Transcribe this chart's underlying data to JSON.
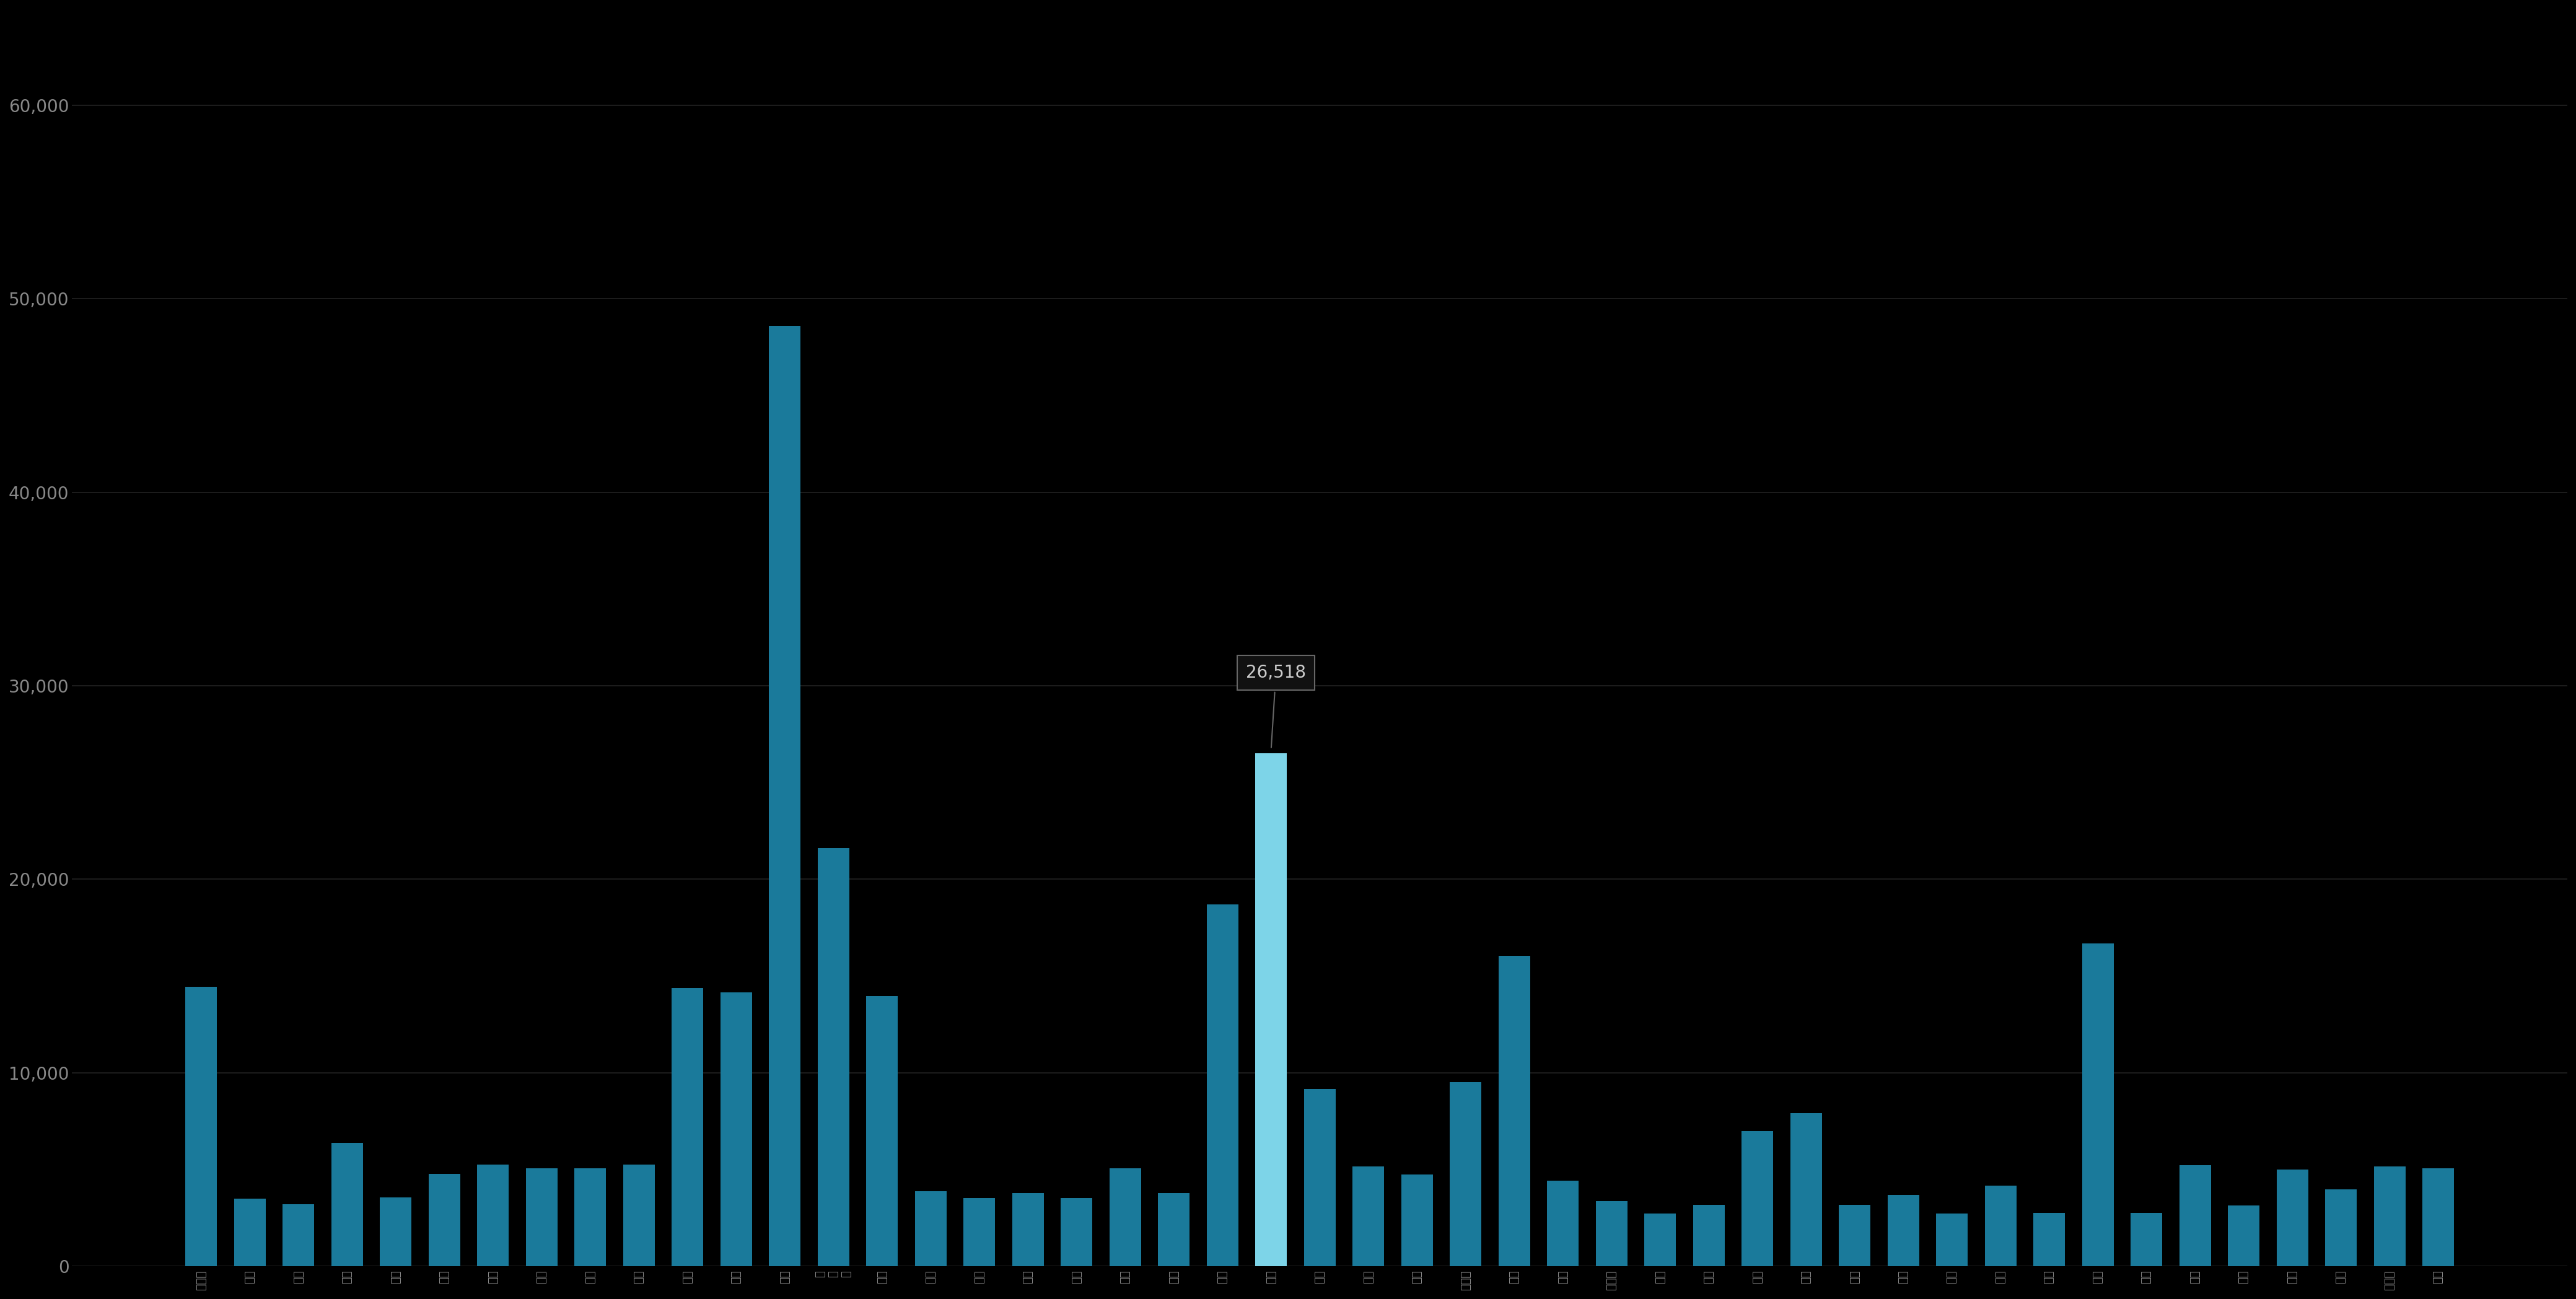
{
  "background_color": "#000000",
  "bar_color_default": "#1a7a9b",
  "bar_color_highlight": "#7dd4e8",
  "highlight_index": 22,
  "annotation_value": "26,518",
  "categories": [
    "北海道",
    "青森",
    "岐手",
    "宮城",
    "秋田",
    "山形",
    "福島",
    "茨城",
    "栃木",
    "群馬",
    "埼玉",
    "千葉",
    "東京",
    "神奈川",
    "新潟",
    "富山",
    "石川",
    "福井",
    "山梨",
    "長野",
    "岐阜",
    "静岡",
    "愛知",
    "三重",
    "滋賀",
    "京都",
    "大阪府",
    "兵庫",
    "奈良",
    "和歌山",
    "鳥取",
    "島根",
    "岡山",
    "広島",
    "山口",
    "徳島",
    "香川",
    "愛媛",
    "高知",
    "福岡",
    "佐賀",
    "長崎",
    "熊本",
    "大分",
    "宮崎",
    "鹿児島",
    "沖縄"
  ],
  "values": [
    14432,
    3490,
    3198,
    6367,
    3558,
    4778,
    5236,
    5070,
    5070,
    5236,
    14380,
    14155,
    48601,
    21600,
    13948,
    3869,
    3527,
    3780,
    3527,
    5070,
    3780,
    18706,
    26518,
    9150,
    5167,
    4736,
    9523,
    16023,
    4407,
    3358,
    2715,
    3166,
    6988,
    7895,
    3166,
    3690,
    2716,
    4158,
    2758,
    16688,
    2758,
    5225,
    3127,
    4978,
    3969,
    5152,
    5070
  ],
  "ylim": [
    0,
    65000
  ],
  "yticks": [
    0,
    10000,
    20000,
    30000,
    40000,
    50000,
    60000
  ],
  "text_color": "#888888",
  "grid_color": "#222222"
}
